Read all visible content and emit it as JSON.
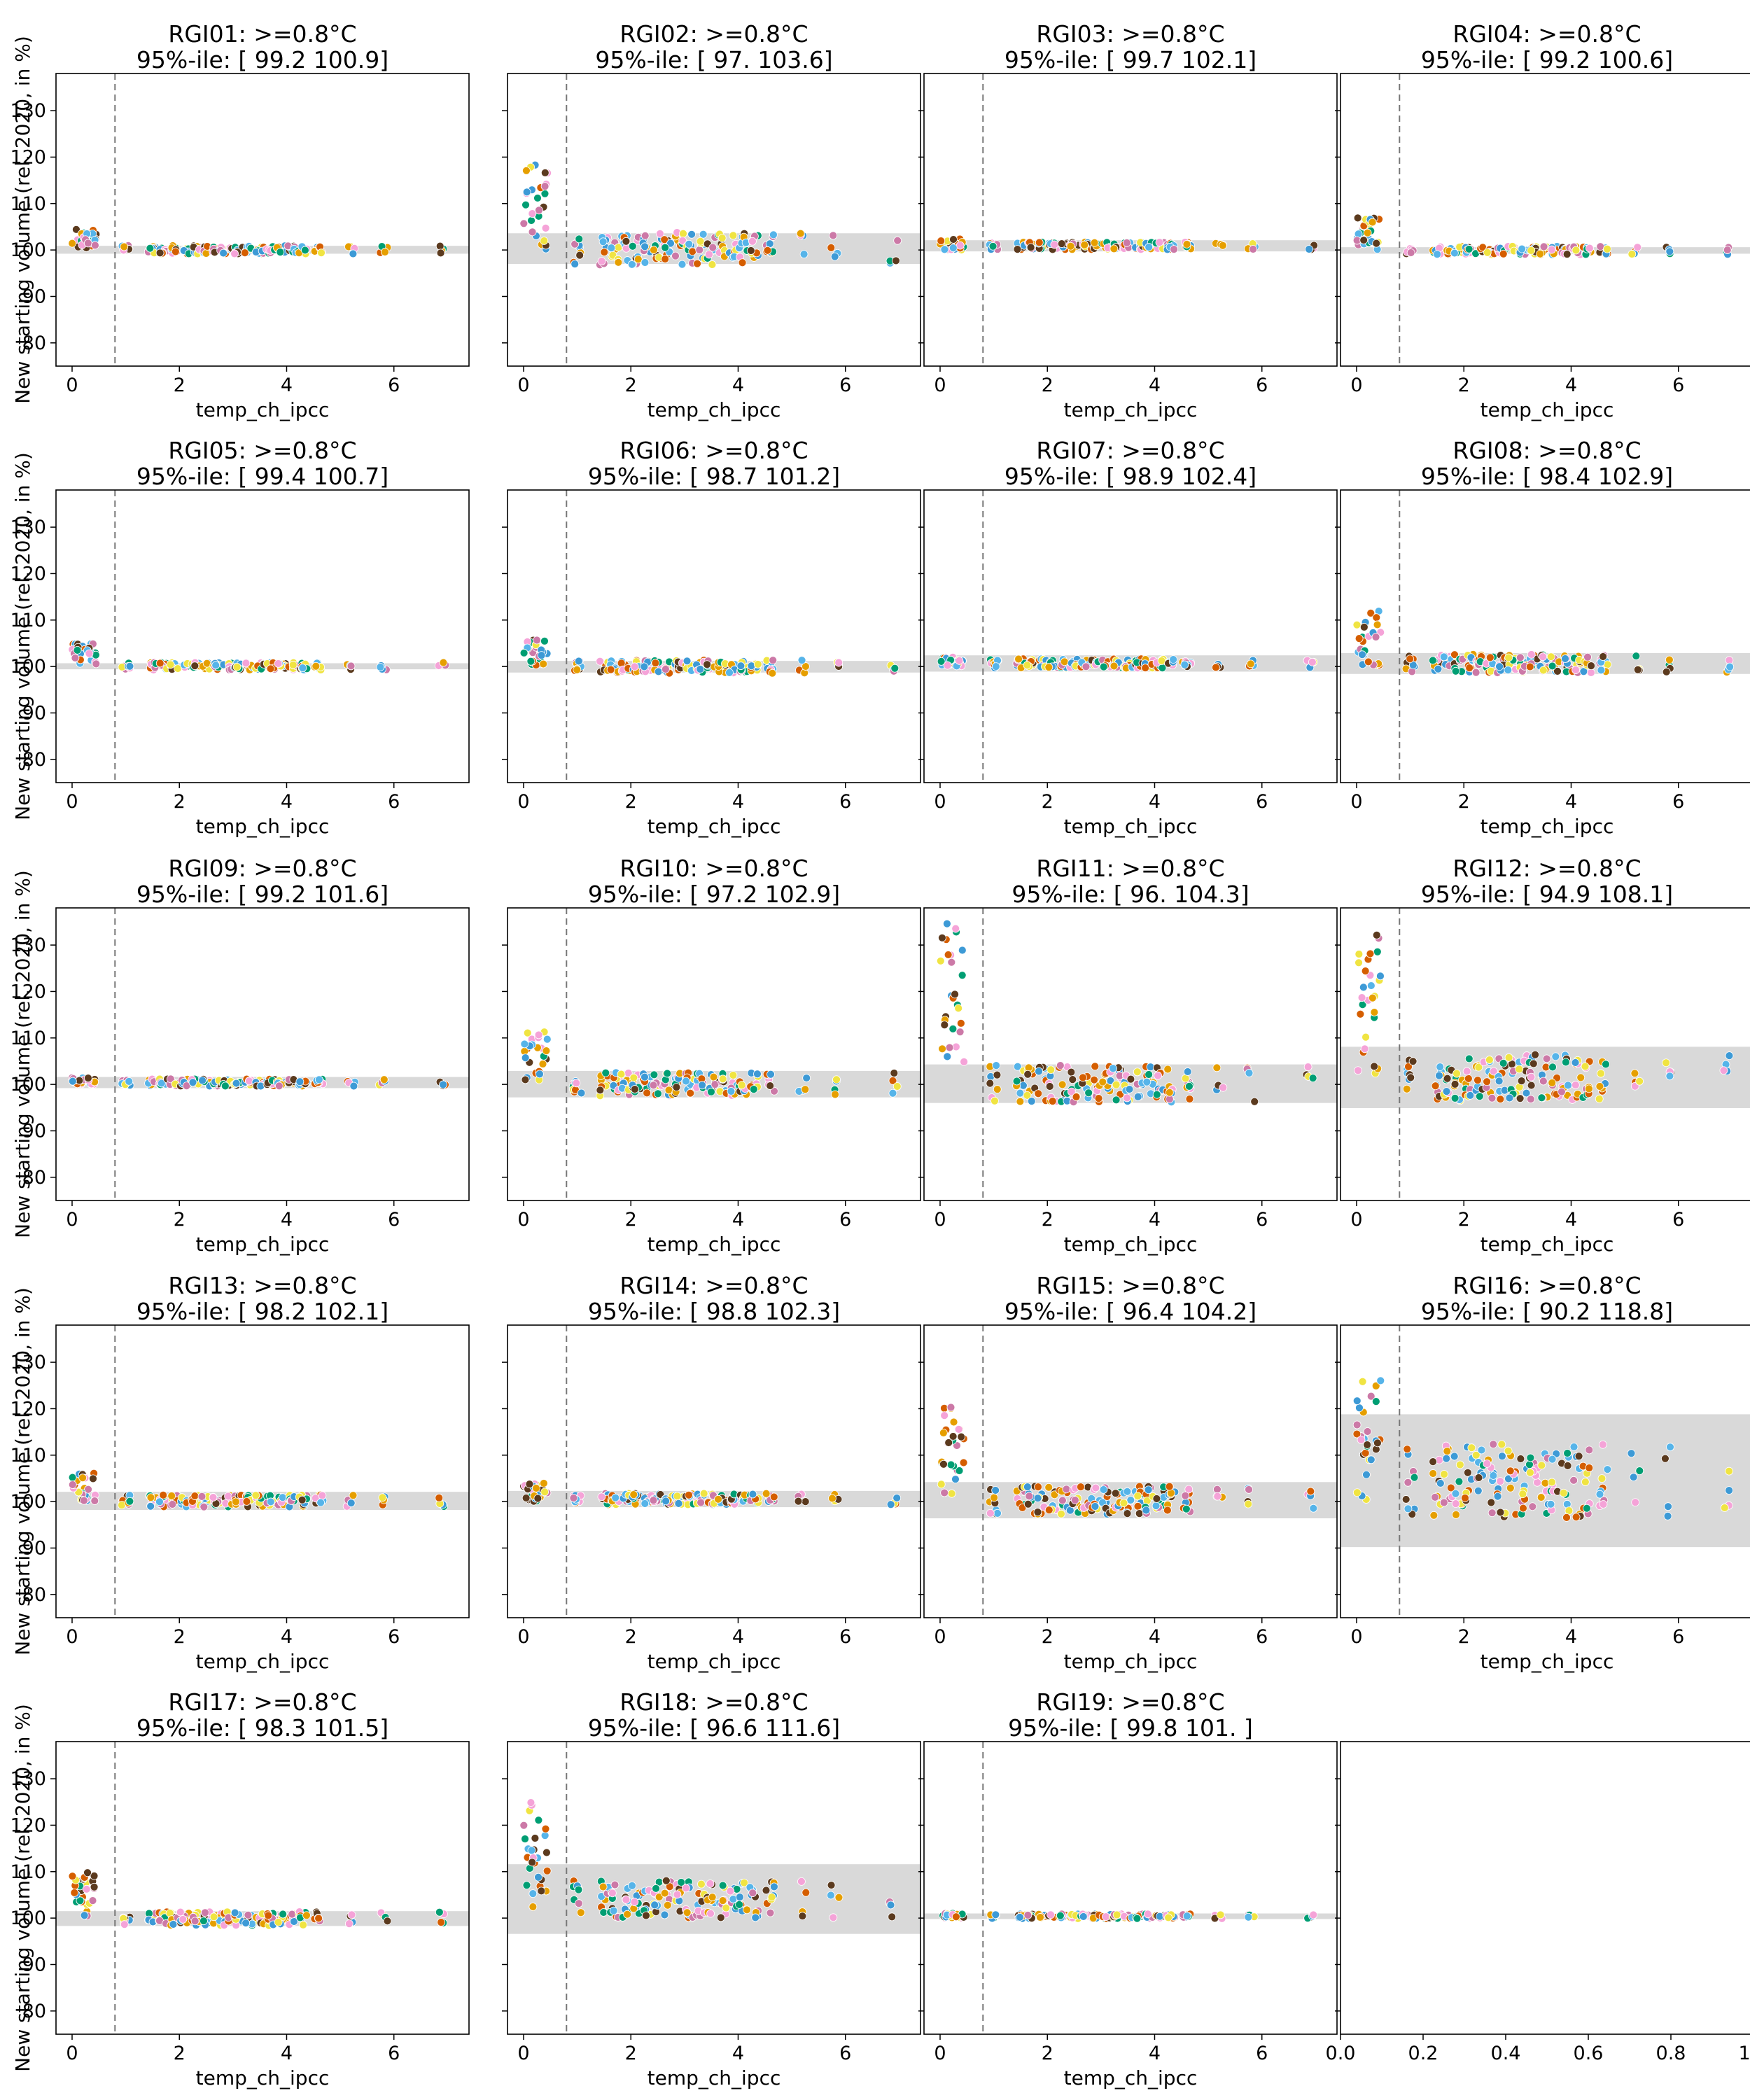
{
  "figure": {
    "ylabel": "New starting volume (rel. 2020, in %)",
    "xlabel": "temp_ch_ipcc",
    "threshold_x": 0.8,
    "x_ticks": [
      "0",
      "2",
      "4",
      "6"
    ],
    "y_ticks": [
      "80",
      "90",
      "100",
      "110",
      "120",
      "130"
    ],
    "empty_x_ticks": [
      "0.0",
      "0.2",
      "0.4",
      "0.6",
      "0.8",
      "1.0"
    ],
    "colors": {
      "band": "#d9d9d9",
      "threshold_line": "#777777",
      "points": [
        "#56b4e9",
        "#d55e00",
        "#e69f00",
        "#009e73",
        "#cc79a7",
        "#f0e442",
        "#5b3a1e",
        "#f5a3d8",
        "#3d9ad6"
      ]
    }
  },
  "chart_data": [
    {
      "type": "scatter",
      "title_line1": "RGI01: >=0.8°C",
      "title_line2": "95%-ile: [ 99.2 100.9]",
      "band": [
        99.2,
        100.9
      ],
      "xlim": [
        -0.3,
        7.4
      ],
      "ylim": [
        75,
        138
      ],
      "early_max": 105,
      "spread": 0.9,
      "has_xlabel": true
    },
    {
      "type": "scatter",
      "title_line1": "RGI02: >=0.8°C",
      "title_line2": "95%-ile: [ 97.  103.6]",
      "band": [
        97.0,
        103.6
      ],
      "xlim": [
        -0.3,
        7.4
      ],
      "ylim": [
        75,
        138
      ],
      "early_max": 118.5,
      "spread": 3.5,
      "has_xlabel": true
    },
    {
      "type": "scatter",
      "title_line1": "RGI03: >=0.8°C",
      "title_line2": "95%-ile: [ 99.7 102.1]",
      "band": [
        99.7,
        102.1
      ],
      "xlim": [
        -0.3,
        7.4
      ],
      "ylim": [
        75,
        138
      ],
      "early_max": 102.5,
      "spread": 0.8,
      "has_xlabel": true
    },
    {
      "type": "scatter",
      "title_line1": "RGI04: >=0.8°C",
      "title_line2": "95%-ile: [ 99.2 100.6]",
      "band": [
        99.2,
        100.6
      ],
      "xlim": [
        -0.3,
        7.4
      ],
      "ylim": [
        75,
        138
      ],
      "early_max": 107,
      "spread": 0.9,
      "has_xlabel": true
    },
    {
      "type": "scatter",
      "title_line1": "RGI05: >=0.8°C",
      "title_line2": "95%-ile: [ 99.4 100.7]",
      "band": [
        99.4,
        100.7
      ],
      "xlim": [
        -0.3,
        7.4
      ],
      "ylim": [
        75,
        138
      ],
      "early_max": 105,
      "spread": 0.8,
      "has_xlabel": true
    },
    {
      "type": "scatter",
      "title_line1": "RGI06: >=0.8°C",
      "title_line2": "95%-ile: [ 98.7 101.2]",
      "band": [
        98.7,
        101.2
      ],
      "xlim": [
        -0.3,
        7.4
      ],
      "ylim": [
        75,
        138
      ],
      "early_max": 106,
      "spread": 1.4,
      "has_xlabel": true
    },
    {
      "type": "scatter",
      "title_line1": "RGI07: >=0.8°C",
      "title_line2": "95%-ile: [ 98.9 102.4]",
      "band": [
        98.9,
        102.4
      ],
      "xlim": [
        -0.3,
        7.4
      ],
      "ylim": [
        75,
        138
      ],
      "early_max": 102,
      "spread": 1.0,
      "has_xlabel": true
    },
    {
      "type": "scatter",
      "title_line1": "RGI08: >=0.8°C",
      "title_line2": "95%-ile: [ 98.4 102.9]",
      "band": [
        98.4,
        102.9
      ],
      "xlim": [
        -0.3,
        7.4
      ],
      "ylim": [
        75,
        138
      ],
      "early_max": 113,
      "spread": 2.0,
      "has_xlabel": true
    },
    {
      "type": "scatter",
      "title_line1": "RGI09: >=0.8°C",
      "title_line2": "95%-ile: [ 99.2 101.6]",
      "band": [
        99.2,
        101.6
      ],
      "xlim": [
        -0.3,
        7.4
      ],
      "ylim": [
        75,
        138
      ],
      "early_max": 101.5,
      "spread": 0.8,
      "has_xlabel": true
    },
    {
      "type": "scatter",
      "title_line1": "RGI10: >=0.8°C",
      "title_line2": "95%-ile: [ 97.2 102.9]",
      "band": [
        97.2,
        102.9
      ],
      "xlim": [
        -0.3,
        7.4
      ],
      "ylim": [
        75,
        138
      ],
      "early_max": 112,
      "spread": 2.5,
      "has_xlabel": true
    },
    {
      "type": "scatter",
      "title_line1": "RGI11: >=0.8°C",
      "title_line2": "95%-ile: [ 96.  104.3]",
      "band": [
        96.0,
        104.3
      ],
      "xlim": [
        -0.3,
        7.4
      ],
      "ylim": [
        75,
        138
      ],
      "early_max": 135.5,
      "spread": 4.0,
      "has_xlabel": true
    },
    {
      "type": "scatter",
      "title_line1": "RGI12: >=0.8°C",
      "title_line2": "95%-ile: [ 94.9 108.1]",
      "band": [
        94.9,
        108.1
      ],
      "xlim": [
        -0.3,
        7.4
      ],
      "ylim": [
        75,
        138
      ],
      "early_max": 132.5,
      "spread": 5.0,
      "has_xlabel": true
    },
    {
      "type": "scatter",
      "title_line1": "RGI13: >=0.8°C",
      "title_line2": "95%-ile: [ 98.2 102.1]",
      "band": [
        98.2,
        102.1
      ],
      "xlim": [
        -0.3,
        7.4
      ],
      "ylim": [
        75,
        138
      ],
      "early_max": 106.5,
      "spread": 1.3,
      "has_xlabel": true
    },
    {
      "type": "scatter",
      "title_line1": "RGI14: >=0.8°C",
      "title_line2": "95%-ile: [ 98.8 102.3]",
      "band": [
        98.8,
        102.3
      ],
      "xlim": [
        -0.3,
        7.4
      ],
      "ylim": [
        75,
        138
      ],
      "early_max": 104,
      "spread": 1.2,
      "has_xlabel": true
    },
    {
      "type": "scatter",
      "title_line1": "RGI15: >=0.8°C",
      "title_line2": "95%-ile: [ 96.4 104.2]",
      "band": [
        96.4,
        104.2
      ],
      "xlim": [
        -0.3,
        7.4
      ],
      "ylim": [
        75,
        138
      ],
      "early_max": 120.5,
      "spread": 3.0,
      "has_xlabel": true
    },
    {
      "type": "scatter",
      "title_line1": "RGI16: >=0.8°C",
      "title_line2": "95%-ile: [ 90.2 118.8]",
      "band": [
        90.2,
        118.8
      ],
      "xlim": [
        -0.3,
        7.4
      ],
      "ylim": [
        75,
        138
      ],
      "early_max": 129,
      "spread": 8.0,
      "has_xlabel": true
    },
    {
      "type": "scatter",
      "title_line1": "RGI17: >=0.8°C",
      "title_line2": "95%-ile: [ 98.3 101.5]",
      "band": [
        98.3,
        101.5
      ],
      "xlim": [
        -0.3,
        7.4
      ],
      "ylim": [
        75,
        138
      ],
      "early_max": 110,
      "spread": 1.5,
      "has_xlabel": true
    },
    {
      "type": "scatter",
      "title_line1": "RGI18: >=0.8°C",
      "title_line2": "95%-ile: [ 96.6 111.6]",
      "band": [
        96.6,
        111.6
      ],
      "xlim": [
        -0.3,
        7.4
      ],
      "ylim": [
        75,
        138
      ],
      "early_max": 126,
      "spread": 4.0,
      "has_xlabel": true
    },
    {
      "type": "scatter",
      "title_line1": "RGI19: >=0.8°C",
      "title_line2": "95%-ile: [ 99.8 101. ]",
      "band": [
        99.8,
        101.0
      ],
      "xlim": [
        -0.3,
        7.4
      ],
      "ylim": [
        75,
        138
      ],
      "early_max": 101,
      "spread": 0.5,
      "has_xlabel": true
    }
  ]
}
